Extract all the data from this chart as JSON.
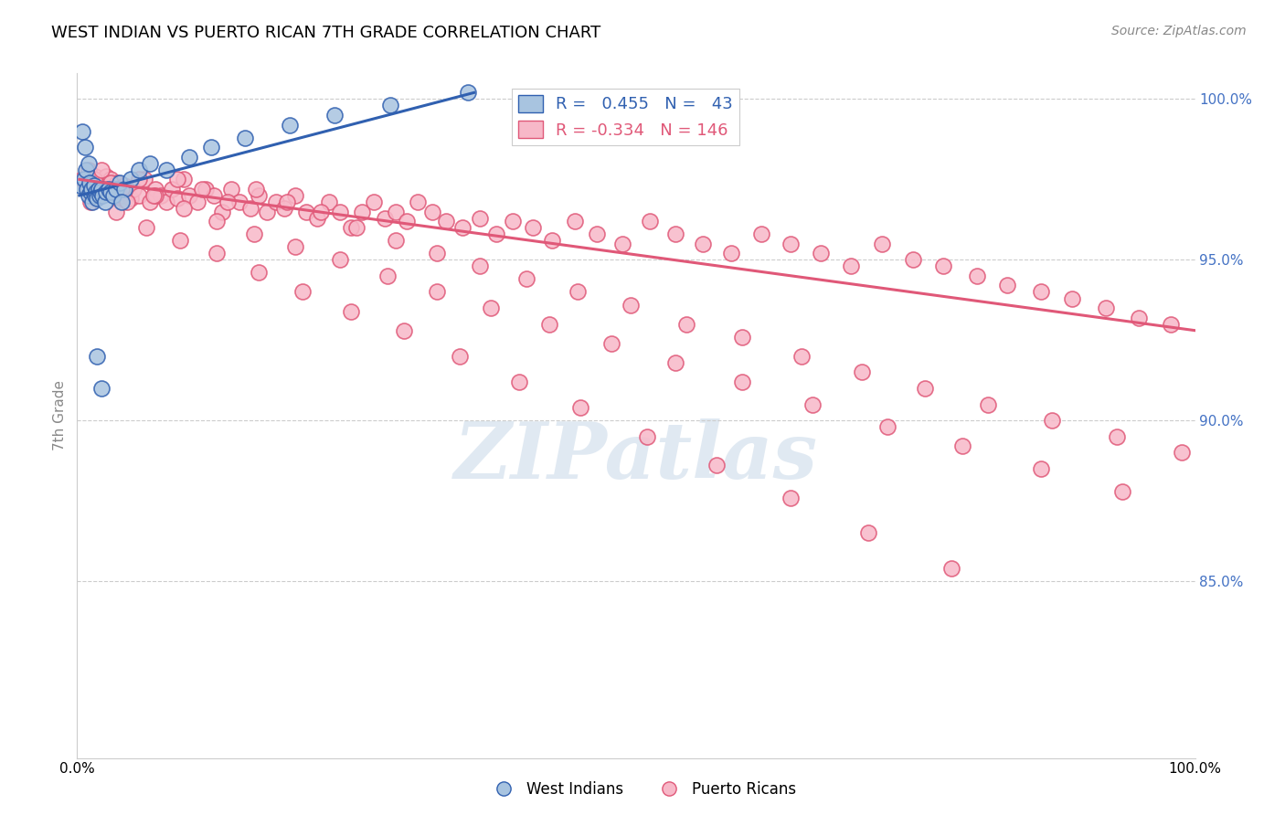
{
  "title": "WEST INDIAN VS PUERTO RICAN 7TH GRADE CORRELATION CHART",
  "source": "Source: ZipAtlas.com",
  "ylabel": "7th Grade",
  "watermark": "ZIPatlas",
  "x_min": 0.0,
  "x_max": 1.0,
  "y_min": 0.795,
  "y_max": 1.008,
  "blue_R": 0.455,
  "blue_N": 43,
  "pink_R": -0.334,
  "pink_N": 146,
  "blue_color": "#a8c4e0",
  "pink_color": "#f7b8c8",
  "blue_line_color": "#3060b0",
  "pink_line_color": "#e05878",
  "legend_blue_label": "West Indians",
  "legend_pink_label": "Puerto Ricans",
  "blue_x_line_start": 0.002,
  "blue_x_line_end": 0.355,
  "blue_y_line_start": 0.97,
  "blue_y_line_end": 1.002,
  "pink_x_line_start": 0.002,
  "pink_x_line_end": 1.0,
  "pink_y_line_start": 0.975,
  "pink_y_line_end": 0.928,
  "blue_scatter_x": [
    0.003,
    0.005,
    0.006,
    0.007,
    0.008,
    0.009,
    0.01,
    0.01,
    0.011,
    0.012,
    0.013,
    0.014,
    0.015,
    0.016,
    0.017,
    0.018,
    0.019,
    0.02,
    0.021,
    0.022,
    0.023,
    0.025,
    0.026,
    0.028,
    0.03,
    0.032,
    0.035,
    0.038,
    0.042,
    0.048,
    0.055,
    0.065,
    0.08,
    0.1,
    0.12,
    0.15,
    0.19,
    0.23,
    0.28,
    0.35,
    0.022,
    0.018,
    0.04
  ],
  "blue_scatter_y": [
    0.973,
    0.99,
    0.975,
    0.985,
    0.978,
    0.972,
    0.98,
    0.97,
    0.974,
    0.971,
    0.972,
    0.968,
    0.973,
    0.97,
    0.971,
    0.969,
    0.972,
    0.97,
    0.971,
    0.972,
    0.97,
    0.968,
    0.971,
    0.972,
    0.971,
    0.97,
    0.972,
    0.974,
    0.972,
    0.975,
    0.978,
    0.98,
    0.978,
    0.982,
    0.985,
    0.988,
    0.992,
    0.995,
    0.998,
    1.002,
    0.91,
    0.92,
    0.968
  ],
  "pink_scatter_x": [
    0.005,
    0.008,
    0.01,
    0.012,
    0.014,
    0.016,
    0.018,
    0.02,
    0.022,
    0.024,
    0.026,
    0.028,
    0.03,
    0.032,
    0.034,
    0.036,
    0.038,
    0.04,
    0.042,
    0.045,
    0.048,
    0.05,
    0.055,
    0.06,
    0.065,
    0.07,
    0.075,
    0.08,
    0.085,
    0.09,
    0.095,
    0.1,
    0.108,
    0.115,
    0.122,
    0.13,
    0.138,
    0.145,
    0.155,
    0.162,
    0.17,
    0.178,
    0.185,
    0.195,
    0.205,
    0.215,
    0.225,
    0.235,
    0.245,
    0.255,
    0.265,
    0.275,
    0.285,
    0.295,
    0.305,
    0.318,
    0.33,
    0.345,
    0.36,
    0.375,
    0.39,
    0.408,
    0.425,
    0.445,
    0.465,
    0.488,
    0.512,
    0.535,
    0.56,
    0.585,
    0.612,
    0.638,
    0.665,
    0.692,
    0.72,
    0.748,
    0.775,
    0.805,
    0.832,
    0.862,
    0.89,
    0.92,
    0.95,
    0.978,
    0.01,
    0.015,
    0.022,
    0.03,
    0.04,
    0.055,
    0.07,
    0.09,
    0.112,
    0.135,
    0.16,
    0.188,
    0.218,
    0.25,
    0.285,
    0.322,
    0.36,
    0.402,
    0.448,
    0.495,
    0.545,
    0.595,
    0.648,
    0.702,
    0.758,
    0.815,
    0.872,
    0.93,
    0.988,
    0.025,
    0.045,
    0.068,
    0.095,
    0.125,
    0.158,
    0.195,
    0.235,
    0.278,
    0.322,
    0.37,
    0.422,
    0.478,
    0.535,
    0.595,
    0.658,
    0.725,
    0.792,
    0.862,
    0.935,
    0.012,
    0.035,
    0.062,
    0.092,
    0.125,
    0.162,
    0.202,
    0.245,
    0.292,
    0.342,
    0.395,
    0.45,
    0.51,
    0.572,
    0.638,
    0.708,
    0.782
  ],
  "pink_scatter_y": [
    0.975,
    0.974,
    0.972,
    0.975,
    0.973,
    0.976,
    0.972,
    0.974,
    0.972,
    0.974,
    0.976,
    0.972,
    0.975,
    0.971,
    0.973,
    0.974,
    0.972,
    0.97,
    0.973,
    0.971,
    0.969,
    0.972,
    0.97,
    0.975,
    0.968,
    0.972,
    0.97,
    0.968,
    0.972,
    0.969,
    0.975,
    0.97,
    0.968,
    0.972,
    0.97,
    0.965,
    0.972,
    0.968,
    0.966,
    0.97,
    0.965,
    0.968,
    0.966,
    0.97,
    0.965,
    0.963,
    0.968,
    0.965,
    0.96,
    0.965,
    0.968,
    0.963,
    0.965,
    0.962,
    0.968,
    0.965,
    0.962,
    0.96,
    0.963,
    0.958,
    0.962,
    0.96,
    0.956,
    0.962,
    0.958,
    0.955,
    0.962,
    0.958,
    0.955,
    0.952,
    0.958,
    0.955,
    0.952,
    0.948,
    0.955,
    0.95,
    0.948,
    0.945,
    0.942,
    0.94,
    0.938,
    0.935,
    0.932,
    0.93,
    0.978,
    0.975,
    0.978,
    0.974,
    0.972,
    0.975,
    0.97,
    0.975,
    0.972,
    0.968,
    0.972,
    0.968,
    0.965,
    0.96,
    0.956,
    0.952,
    0.948,
    0.944,
    0.94,
    0.936,
    0.93,
    0.926,
    0.92,
    0.915,
    0.91,
    0.905,
    0.9,
    0.895,
    0.89,
    0.972,
    0.968,
    0.97,
    0.966,
    0.962,
    0.958,
    0.954,
    0.95,
    0.945,
    0.94,
    0.935,
    0.93,
    0.924,
    0.918,
    0.912,
    0.905,
    0.898,
    0.892,
    0.885,
    0.878,
    0.968,
    0.965,
    0.96,
    0.956,
    0.952,
    0.946,
    0.94,
    0.934,
    0.928,
    0.92,
    0.912,
    0.904,
    0.895,
    0.886,
    0.876,
    0.865,
    0.854
  ]
}
